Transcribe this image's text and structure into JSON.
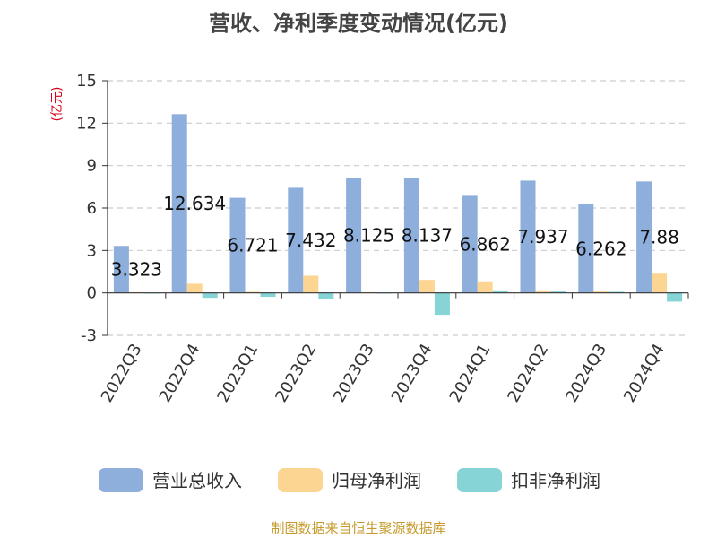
{
  "chart_data": {
    "type": "bar",
    "title": "营收、净利季度变动情况(亿元)",
    "unit_label": "(亿元)",
    "categories": [
      "2022Q3",
      "2022Q4",
      "2023Q1",
      "2023Q2",
      "2023Q3",
      "2023Q4",
      "2024Q1",
      "2024Q2",
      "2024Q3",
      "2024Q4"
    ],
    "series": [
      {
        "name": "营业总收入",
        "color": "#8eaedb",
        "values": [
          3.323,
          12.634,
          6.721,
          7.432,
          8.125,
          8.137,
          6.862,
          7.937,
          6.262,
          7.88
        ]
      },
      {
        "name": "归母净利润",
        "color": "#fdd592",
        "values": [
          0.05,
          0.65,
          0.08,
          1.22,
          0.05,
          0.92,
          0.82,
          0.18,
          0.1,
          1.36
        ]
      },
      {
        "name": "扣非净利润",
        "color": "#86d4d5",
        "values": [
          -0.02,
          -0.35,
          -0.28,
          -0.42,
          -0.05,
          -1.55,
          0.18,
          0.1,
          0.08,
          -0.62
        ]
      }
    ],
    "data_labels": [
      "3.323",
      "12.634",
      "6.721",
      "7.432",
      "8.125",
      "8.137",
      "6.862",
      "7.937",
      "6.262",
      "7.88"
    ],
    "yticks": [
      -3,
      0,
      3,
      6,
      9,
      12,
      15
    ],
    "ylim": [
      -3,
      15
    ],
    "grid": true,
    "legend_position": "bottom"
  },
  "source": "制图数据来自恒生聚源数据库",
  "colors": {
    "title": "#444444",
    "unit": "#d9001b",
    "source": "#c59a2b",
    "grid": "#cccccc"
  }
}
